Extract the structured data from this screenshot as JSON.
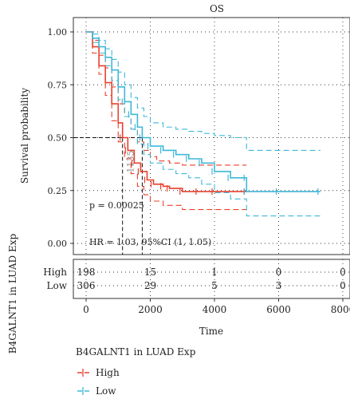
{
  "chart_data": {
    "type": "line",
    "title": "OS",
    "xlabel": "Time",
    "ylabel": "Survival probability",
    "xlim": [
      0,
      8000
    ],
    "ylim": [
      0,
      1
    ],
    "x_ticks": [
      "0",
      "2000",
      "4000",
      "6000",
      "8000"
    ],
    "y_ticks": [
      "0.00",
      "0.25",
      "0.50",
      "0.75",
      "1.00"
    ],
    "grid": "dotted",
    "pvalue_text": "p = 0.00025",
    "hr_text": "HR = 1.03, 95%CI (1, 1.05)",
    "median_label": "1135",
    "median": {
      "y": 0.5,
      "high_x": 1135,
      "low_x": 1750
    },
    "series": [
      {
        "name": "High",
        "color": "#e8412e",
        "points": [
          [
            0,
            1.0
          ],
          [
            200,
            0.93
          ],
          [
            400,
            0.84
          ],
          [
            600,
            0.76
          ],
          [
            800,
            0.66
          ],
          [
            1000,
            0.57
          ],
          [
            1135,
            0.5
          ],
          [
            1300,
            0.44
          ],
          [
            1500,
            0.38
          ],
          [
            1700,
            0.34
          ],
          [
            1900,
            0.3
          ],
          [
            2100,
            0.28
          ],
          [
            2400,
            0.27
          ],
          [
            2600,
            0.26
          ],
          [
            3000,
            0.245
          ],
          [
            3500,
            0.245
          ],
          [
            4000,
            0.245
          ],
          [
            5000,
            0.245
          ]
        ],
        "ci_upper": [
          [
            0,
            1.0
          ],
          [
            200,
            0.96
          ],
          [
            400,
            0.89
          ],
          [
            600,
            0.83
          ],
          [
            800,
            0.74
          ],
          [
            1000,
            0.66
          ],
          [
            1200,
            0.6
          ],
          [
            1400,
            0.54
          ],
          [
            1600,
            0.48
          ],
          [
            1800,
            0.44
          ],
          [
            2000,
            0.41
          ],
          [
            2200,
            0.39
          ],
          [
            2600,
            0.38
          ],
          [
            3000,
            0.37
          ],
          [
            3500,
            0.37
          ],
          [
            4000,
            0.37
          ],
          [
            5000,
            0.37
          ]
        ],
        "ci_lower": [
          [
            0,
            1.0
          ],
          [
            200,
            0.9
          ],
          [
            400,
            0.8
          ],
          [
            600,
            0.7
          ],
          [
            800,
            0.58
          ],
          [
            1000,
            0.48
          ],
          [
            1200,
            0.4
          ],
          [
            1400,
            0.33
          ],
          [
            1600,
            0.27
          ],
          [
            1800,
            0.23
          ],
          [
            2000,
            0.2
          ],
          [
            2400,
            0.18
          ],
          [
            3000,
            0.16
          ],
          [
            4000,
            0.16
          ],
          [
            5000,
            0.16
          ]
        ]
      },
      {
        "name": "Low",
        "color": "#3fb8d8",
        "points": [
          [
            0,
            1.0
          ],
          [
            200,
            0.97
          ],
          [
            400,
            0.93
          ],
          [
            600,
            0.88
          ],
          [
            800,
            0.82
          ],
          [
            1000,
            0.74
          ],
          [
            1200,
            0.67
          ],
          [
            1400,
            0.61
          ],
          [
            1600,
            0.55
          ],
          [
            1750,
            0.5
          ],
          [
            2000,
            0.46
          ],
          [
            2400,
            0.44
          ],
          [
            2800,
            0.42
          ],
          [
            3200,
            0.4
          ],
          [
            3600,
            0.38
          ],
          [
            4000,
            0.34
          ],
          [
            4500,
            0.31
          ],
          [
            5000,
            0.31
          ],
          [
            5001,
            0.245
          ],
          [
            6000,
            0.245
          ],
          [
            7300,
            0.245
          ]
        ],
        "ci_upper": [
          [
            0,
            1.0
          ],
          [
            200,
            0.99
          ],
          [
            400,
            0.96
          ],
          [
            600,
            0.92
          ],
          [
            800,
            0.87
          ],
          [
            1000,
            0.81
          ],
          [
            1200,
            0.75
          ],
          [
            1400,
            0.69
          ],
          [
            1600,
            0.64
          ],
          [
            1800,
            0.6
          ],
          [
            2000,
            0.57
          ],
          [
            2400,
            0.55
          ],
          [
            2800,
            0.54
          ],
          [
            3200,
            0.53
          ],
          [
            3600,
            0.52
          ],
          [
            4000,
            0.51
          ],
          [
            4500,
            0.5
          ],
          [
            5000,
            0.5
          ],
          [
            5001,
            0.44
          ],
          [
            6000,
            0.44
          ],
          [
            7300,
            0.44
          ]
        ],
        "ci_lower": [
          [
            0,
            1.0
          ],
          [
            200,
            0.95
          ],
          [
            400,
            0.9
          ],
          [
            600,
            0.84
          ],
          [
            800,
            0.77
          ],
          [
            1000,
            0.68
          ],
          [
            1200,
            0.6
          ],
          [
            1400,
            0.54
          ],
          [
            1600,
            0.47
          ],
          [
            1800,
            0.42
          ],
          [
            2000,
            0.38
          ],
          [
            2400,
            0.35
          ],
          [
            2800,
            0.33
          ],
          [
            3200,
            0.31
          ],
          [
            3600,
            0.28
          ],
          [
            4000,
            0.24
          ],
          [
            4500,
            0.21
          ],
          [
            5000,
            0.2
          ],
          [
            5001,
            0.13
          ],
          [
            6000,
            0.13
          ],
          [
            7300,
            0.13
          ]
        ]
      }
    ],
    "risk_table": {
      "ylabel": "B4GALNT1 in LUAD Exp",
      "times": [
        0,
        2000,
        4000,
        6000,
        8000
      ],
      "rows": [
        {
          "name": "High",
          "counts": [
            "198",
            "15",
            "1",
            "0",
            "0"
          ]
        },
        {
          "name": "Low",
          "counts": [
            "306",
            "29",
            "5",
            "3",
            "0"
          ]
        }
      ]
    },
    "legend": {
      "title": "B4GALNT1 in LUAD Exp",
      "position": "bottom",
      "entries": [
        "High",
        "Low"
      ]
    }
  }
}
